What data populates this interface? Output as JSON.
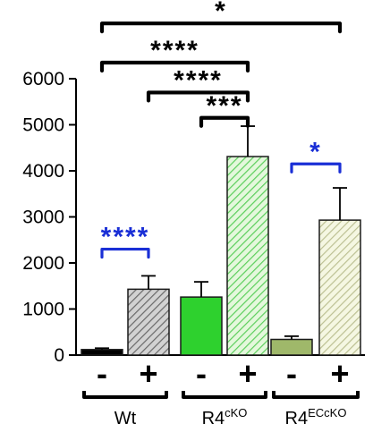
{
  "chart_data": {
    "type": "bar",
    "title": "",
    "xlabel": "",
    "ylabel": "",
    "ylim": [
      0,
      6000
    ],
    "y_ticks": [
      "0",
      "1000",
      "2000",
      "3000",
      "4000",
      "5000",
      "6000"
    ],
    "grid": false,
    "legend": "none",
    "categories": [
      "-",
      "+",
      "-",
      "+",
      "-",
      "+"
    ],
    "groups": [
      {
        "label": "Wt",
        "sup": "",
        "bars": [
          0,
          1
        ]
      },
      {
        "label": "R4",
        "sup": "cKO",
        "bars": [
          2,
          3
        ]
      },
      {
        "label": "R4",
        "sup": "ECcKO",
        "bars": [
          4,
          5
        ]
      }
    ],
    "values": [
      120,
      1430,
      1260,
      4310,
      340,
      2930
    ],
    "errors": [
      30,
      290,
      330,
      660,
      70,
      700
    ],
    "bar_styles": [
      {
        "fill": "#000000",
        "hatch": false
      },
      {
        "fill": "#c9c9c9",
        "stroke": "#555555",
        "hatch": true
      },
      {
        "fill": "#2ed12e",
        "hatch": false
      },
      {
        "fill": "#c9f0b8",
        "stroke": "#3fbf3f",
        "hatch": true
      },
      {
        "fill": "#9fb86a",
        "hatch": false
      },
      {
        "fill": "#eef2cf",
        "stroke": "#a9ae7a",
        "hatch": true
      }
    ],
    "annotations": [
      {
        "from": 0,
        "to": 5,
        "label": "*",
        "color": "#000000",
        "y": 7200
      },
      {
        "from": 0,
        "to": 3,
        "label": "****",
        "color": "#000000",
        "y": 6350
      },
      {
        "from": 1,
        "to": 3,
        "label": "****",
        "color": "#000000",
        "y": 5700
      },
      {
        "from": 2,
        "to": 3,
        "label": "***",
        "color": "#000000",
        "y": 5150
      },
      {
        "from": 0,
        "to": 1,
        "label": "****",
        "color": "#1a2fd6",
        "y": 2300
      },
      {
        "from": 4,
        "to": 5,
        "label": "*",
        "color": "#1a2fd6",
        "y": 4150
      }
    ]
  }
}
